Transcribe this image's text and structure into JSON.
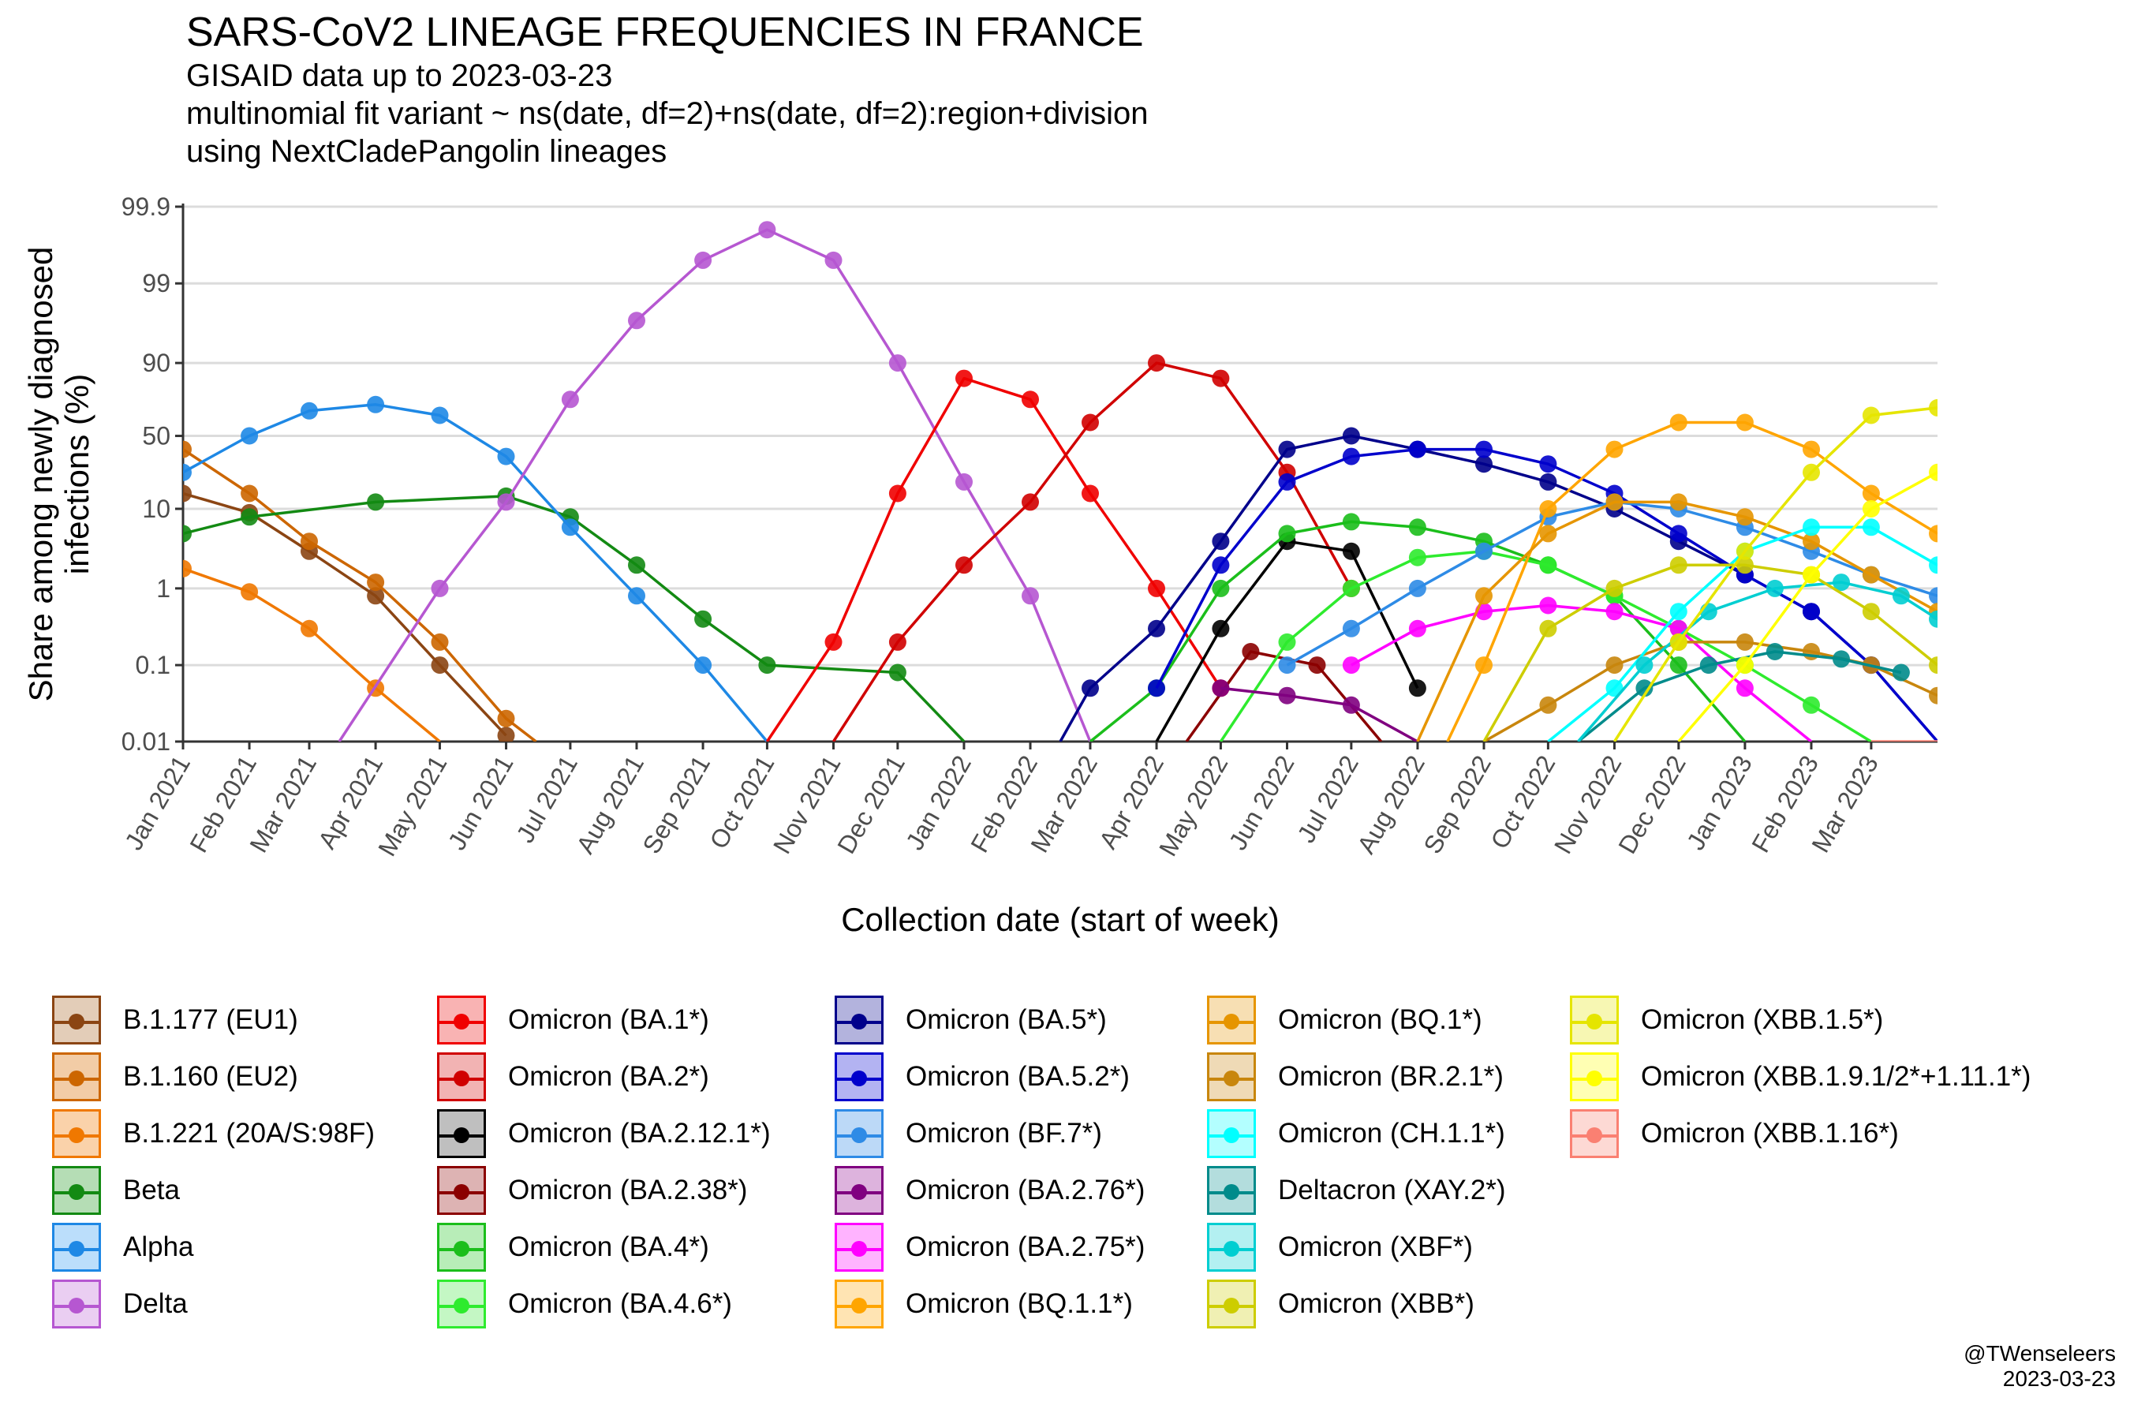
{
  "header": {
    "title": "SARS-CoV2 LINEAGE FREQUENCIES IN FRANCE",
    "subtitle_lines": [
      "GISAID data up to 2023-03-23",
      "multinomial fit variant ~ ns(date, df=2)+ns(date, df=2):region+division",
      "using NextCladePangolin lineages"
    ]
  },
  "credit": {
    "handle": "@TWenseleers",
    "date": "2023-03-23"
  },
  "chart_data": {
    "type": "line",
    "title": "SARS-CoV2 LINEAGE FREQUENCIES IN FRANCE",
    "xlabel": "Collection date (start of week)",
    "ylabel": "Share among newly diagnosed infections (%)",
    "y_scale": "logit",
    "yticks": [
      0.01,
      0.1,
      1,
      10,
      50,
      90,
      99,
      99.9
    ],
    "ytick_labels": [
      "0.01",
      "0.1",
      "1",
      "10",
      "50",
      "90",
      "99",
      "99.9"
    ],
    "xlim": [
      "2021-01-01",
      "2023-04-01"
    ],
    "xticks": [
      "2021-01-01",
      "2021-02-01",
      "2021-03-01",
      "2021-04-01",
      "2021-05-01",
      "2021-06-01",
      "2021-07-01",
      "2021-08-01",
      "2021-09-01",
      "2021-10-01",
      "2021-11-01",
      "2021-12-01",
      "2022-01-01",
      "2022-02-01",
      "2022-03-01",
      "2022-04-01",
      "2022-05-01",
      "2022-06-01",
      "2022-07-01",
      "2022-08-01",
      "2022-09-01",
      "2022-10-01",
      "2022-11-01",
      "2022-12-01",
      "2023-01-01",
      "2023-02-01",
      "2023-03-01"
    ],
    "xtick_labels": [
      "Jan 2021",
      "Feb 2021",
      "Mar 2021",
      "Apr 2021",
      "May 2021",
      "Jun 2021",
      "Jul 2021",
      "Aug 2021",
      "Sep 2021",
      "Oct 2021",
      "Nov 2021",
      "Dec 2021",
      "Jan 2022",
      "Feb 2022",
      "Mar 2022",
      "Apr 2022",
      "May 2022",
      "Jun 2022",
      "Jul 2022",
      "Aug 2022",
      "Sep 2022",
      "Oct 2022",
      "Nov 2022",
      "Dec 2022",
      "Jan 2023",
      "Feb 2023",
      "Mar 2023"
    ],
    "grid": true,
    "legend_position": "bottom",
    "series": [
      {
        "name": "B.1.177 (EU1)",
        "color": "#8B4513",
        "fill": "#E3CDB8",
        "x": [
          "2021-01-01",
          "2021-02-01",
          "2021-03-01",
          "2021-04-01",
          "2021-05-01",
          "2021-06-01"
        ],
        "y": [
          15,
          9,
          3,
          0.8,
          0.1,
          0.012
        ]
      },
      {
        "name": "B.1.160 (EU2)",
        "color": "#CC6600",
        "fill": "#F2CCA6",
        "x": [
          "2021-01-01",
          "2021-02-01",
          "2021-03-01",
          "2021-04-01",
          "2021-05-01",
          "2021-06-01",
          "2021-06-15"
        ],
        "y": [
          40,
          15,
          4,
          1.2,
          0.2,
          0.02,
          0.01
        ]
      },
      {
        "name": "B.1.221 (20A/S:98F)",
        "color": "#F07800",
        "fill": "#FAD2AA",
        "x": [
          "2021-01-01",
          "2021-02-01",
          "2021-03-01",
          "2021-04-01",
          "2021-05-01"
        ],
        "y": [
          1.8,
          0.9,
          0.3,
          0.05,
          0.01
        ]
      },
      {
        "name": "Beta",
        "color": "#138A13",
        "fill": "#B5DDB5",
        "x": [
          "2021-01-01",
          "2021-02-01",
          "2021-04-01",
          "2021-06-01",
          "2021-07-01",
          "2021-08-01",
          "2021-09-01",
          "2021-10-01",
          "2021-12-01",
          "2022-01-01"
        ],
        "y": [
          5,
          8,
          12,
          14,
          8,
          2,
          0.4,
          0.1,
          0.08,
          0.01
        ]
      },
      {
        "name": "Alpha",
        "color": "#1E88E5",
        "fill": "#BBDEFB",
        "x": [
          "2021-01-01",
          "2021-02-01",
          "2021-03-01",
          "2021-04-01",
          "2021-05-01",
          "2021-06-01",
          "2021-07-01",
          "2021-08-01",
          "2021-09-01",
          "2021-10-01"
        ],
        "y": [
          25,
          50,
          68,
          72,
          65,
          35,
          6,
          0.8,
          0.1,
          0.01
        ]
      },
      {
        "name": "Delta",
        "color": "#B657D1",
        "fill": "#EACEF2",
        "x": [
          "2021-03-15",
          "2021-05-01",
          "2021-06-01",
          "2021-07-01",
          "2021-08-01",
          "2021-09-01",
          "2021-10-01",
          "2021-11-01",
          "2021-12-01",
          "2022-01-01",
          "2022-02-01",
          "2022-03-01"
        ],
        "y": [
          0.01,
          1,
          12,
          75,
          97,
          99.5,
          99.8,
          99.5,
          90,
          20,
          0.8,
          0.01
        ]
      },
      {
        "name": "Omicron (BA.1*)",
        "color": "#F00000",
        "fill": "#F9B3B3",
        "x": [
          "2021-10-01",
          "2021-11-01",
          "2021-12-01",
          "2022-01-01",
          "2022-02-01",
          "2022-03-01",
          "2022-04-01",
          "2022-05-01"
        ],
        "y": [
          0.01,
          0.2,
          15,
          85,
          75,
          15,
          1,
          0.05
        ]
      },
      {
        "name": "Omicron (BA.2*)",
        "color": "#D00000",
        "fill": "#F2B3B3",
        "x": [
          "2021-11-01",
          "2021-12-01",
          "2022-01-01",
          "2022-02-01",
          "2022-03-01",
          "2022-04-01",
          "2022-05-01",
          "2022-06-01",
          "2022-07-01"
        ],
        "y": [
          0.01,
          0.2,
          2,
          12,
          60,
          90,
          85,
          25,
          1
        ]
      },
      {
        "name": "Omicron (BA.2.12.1*)",
        "color": "#000000",
        "fill": "#BFBFBF",
        "x": [
          "2022-04-01",
          "2022-05-01",
          "2022-06-01",
          "2022-07-01",
          "2022-08-01"
        ],
        "y": [
          0.01,
          0.3,
          4,
          3,
          0.05
        ]
      },
      {
        "name": "Omicron (BA.2.38*)",
        "color": "#8B0000",
        "fill": "#DDB3B3",
        "x": [
          "2022-04-15",
          "2022-05-15",
          "2022-06-15",
          "2022-07-15"
        ],
        "y": [
          0.01,
          0.15,
          0.1,
          0.01
        ]
      },
      {
        "name": "Omicron (BA.4*)",
        "color": "#1BBE1B",
        "fill": "#B8EDB8",
        "x": [
          "2022-03-01",
          "2022-04-01",
          "2022-05-01",
          "2022-06-01",
          "2022-07-01",
          "2022-08-01",
          "2022-09-01",
          "2022-10-01",
          "2022-11-01",
          "2022-12-01",
          "2023-01-01"
        ],
        "y": [
          0.01,
          0.05,
          1,
          5,
          7,
          6,
          4,
          2,
          0.8,
          0.1,
          0.01
        ]
      },
      {
        "name": "Omicron (BA.4.6*)",
        "color": "#2EEB2E",
        "fill": "#C4F7C4",
        "x": [
          "2022-05-01",
          "2022-06-01",
          "2022-07-01",
          "2022-08-01",
          "2022-09-01",
          "2022-10-01",
          "2022-11-01",
          "2022-12-01",
          "2023-01-01",
          "2023-02-01",
          "2023-03-01"
        ],
        "y": [
          0.01,
          0.2,
          1,
          2.5,
          3,
          2,
          0.8,
          0.3,
          0.1,
          0.03,
          0.01
        ]
      },
      {
        "name": "Omicron (BA.5*)",
        "color": "#00008B",
        "fill": "#B3B3DD",
        "x": [
          "2022-02-15",
          "2022-03-01",
          "2022-04-01",
          "2022-05-01",
          "2022-06-01",
          "2022-07-01",
          "2022-08-01",
          "2022-09-01",
          "2022-10-01",
          "2022-11-01",
          "2022-12-01",
          "2023-01-01",
          "2023-02-01",
          "2023-03-01",
          "2023-04-01"
        ],
        "y": [
          0.01,
          0.05,
          0.3,
          4,
          40,
          50,
          40,
          30,
          20,
          10,
          4,
          1.5,
          0.5,
          0.1,
          0.01
        ]
      },
      {
        "name": "Omicron (BA.5.2*)",
        "color": "#0000CC",
        "fill": "#B3B3F2",
        "x": [
          "2022-04-01",
          "2022-05-01",
          "2022-06-01",
          "2022-07-01",
          "2022-08-01",
          "2022-09-01",
          "2022-10-01",
          "2022-11-01",
          "2022-12-01",
          "2023-01-01",
          "2023-02-01",
          "2023-03-01",
          "2023-04-01"
        ],
        "y": [
          0.05,
          2,
          20,
          35,
          40,
          40,
          30,
          15,
          5,
          1.5,
          0.5,
          0.1,
          0.01
        ]
      },
      {
        "name": "Omicron (BF.7*)",
        "color": "#2E8BE6",
        "fill": "#BCD9F7",
        "x": [
          "2022-06-01",
          "2022-07-01",
          "2022-08-01",
          "2022-09-01",
          "2022-10-01",
          "2022-11-01",
          "2022-12-01",
          "2023-01-01",
          "2023-02-01",
          "2023-03-01",
          "2023-04-01"
        ],
        "y": [
          0.1,
          0.3,
          1,
          3,
          8,
          12,
          10,
          6,
          3,
          1.5,
          0.8
        ]
      },
      {
        "name": "Omicron (BA.2.76*)",
        "color": "#800080",
        "fill": "#DDB3DD",
        "x": [
          "2022-05-01",
          "2022-06-01",
          "2022-07-01",
          "2022-08-01"
        ],
        "y": [
          0.05,
          0.04,
          0.03,
          0.01
        ]
      },
      {
        "name": "Omicron (BA.2.75*)",
        "color": "#FF00FF",
        "fill": "#FFB3FF",
        "x": [
          "2022-07-01",
          "2022-08-01",
          "2022-09-01",
          "2022-10-01",
          "2022-11-01",
          "2022-12-01",
          "2023-01-01",
          "2023-02-01"
        ],
        "y": [
          0.1,
          0.3,
          0.5,
          0.6,
          0.5,
          0.3,
          0.05,
          0.01
        ]
      },
      {
        "name": "Omicron (BQ.1.1*)",
        "color": "#FFA500",
        "fill": "#FFE4B3",
        "x": [
          "2022-08-15",
          "2022-09-01",
          "2022-10-01",
          "2022-11-01",
          "2022-12-01",
          "2023-01-01",
          "2023-02-01",
          "2023-03-01",
          "2023-04-01"
        ],
        "y": [
          0.01,
          0.1,
          10,
          40,
          60,
          60,
          40,
          15,
          5
        ]
      },
      {
        "name": "Omicron (BQ.1*)",
        "color": "#E69500",
        "fill": "#F7DFB3",
        "x": [
          "2022-08-01",
          "2022-09-01",
          "2022-10-01",
          "2022-11-01",
          "2022-12-01",
          "2023-01-01",
          "2023-02-01",
          "2023-03-01",
          "2023-04-01"
        ],
        "y": [
          0.01,
          0.8,
          5,
          12,
          12,
          8,
          4,
          1.5,
          0.5
        ]
      },
      {
        "name": "Omicron (BR.2.1*)",
        "color": "#C8860D",
        "fill": "#EFDAB6",
        "x": [
          "2022-09-01",
          "2022-10-01",
          "2022-11-01",
          "2022-12-01",
          "2023-01-01",
          "2023-02-01",
          "2023-03-01",
          "2023-04-01"
        ],
        "y": [
          0.01,
          0.03,
          0.1,
          0.2,
          0.2,
          0.15,
          0.1,
          0.04
        ]
      },
      {
        "name": "Omicron (CH.1.1*)",
        "color": "#00FFFF",
        "fill": "#B3FFFF",
        "x": [
          "2022-10-01",
          "2022-11-01",
          "2022-12-01",
          "2023-01-01",
          "2023-02-01",
          "2023-03-01",
          "2023-04-01"
        ],
        "y": [
          0.01,
          0.05,
          0.5,
          3,
          6,
          6,
          2
        ]
      },
      {
        "name": "Deltacron (XAY.2*)",
        "color": "#008B8B",
        "fill": "#B3DDDD",
        "x": [
          "2022-10-15",
          "2022-11-15",
          "2022-12-15",
          "2023-01-15",
          "2023-02-15",
          "2023-03-15"
        ],
        "y": [
          0.01,
          0.05,
          0.1,
          0.15,
          0.12,
          0.08
        ]
      },
      {
        "name": "Omicron (XBF*)",
        "color": "#00CED1",
        "fill": "#B3F0F1",
        "x": [
          "2022-10-15",
          "2022-11-15",
          "2022-12-15",
          "2023-01-15",
          "2023-02-15",
          "2023-03-15",
          "2023-04-01"
        ],
        "y": [
          0.01,
          0.1,
          0.5,
          1,
          1.2,
          0.8,
          0.4
        ]
      },
      {
        "name": "Omicron (XBB*)",
        "color": "#CDCD00",
        "fill": "#F0F0B3",
        "x": [
          "2022-09-01",
          "2022-10-01",
          "2022-11-01",
          "2022-12-01",
          "2023-01-01",
          "2023-02-01",
          "2023-03-01",
          "2023-04-01"
        ],
        "y": [
          0.01,
          0.3,
          1,
          2,
          2,
          1.5,
          0.5,
          0.1
        ]
      },
      {
        "name": "Omicron (XBB.1.5*)",
        "color": "#E5E500",
        "fill": "#F7F7B3",
        "x": [
          "2022-11-01",
          "2022-12-01",
          "2023-01-01",
          "2023-02-01",
          "2023-03-01",
          "2023-04-01"
        ],
        "y": [
          0.01,
          0.2,
          3,
          25,
          65,
          70
        ]
      },
      {
        "name": "Omicron (XBB.1.9.1/2*+1.11.1*)",
        "color": "#FFFF00",
        "fill": "#FFFFB3",
        "x": [
          "2022-12-01",
          "2023-01-01",
          "2023-02-01",
          "2023-03-01",
          "2023-04-01"
        ],
        "y": [
          0.01,
          0.1,
          1.5,
          10,
          25
        ]
      },
      {
        "name": "Omicron (XBB.1.16*)",
        "color": "#FA8072",
        "fill": "#FDD9D4",
        "x": [
          "2023-03-01",
          "2023-04-01"
        ],
        "y": [
          0.01,
          0.01
        ]
      }
    ]
  }
}
